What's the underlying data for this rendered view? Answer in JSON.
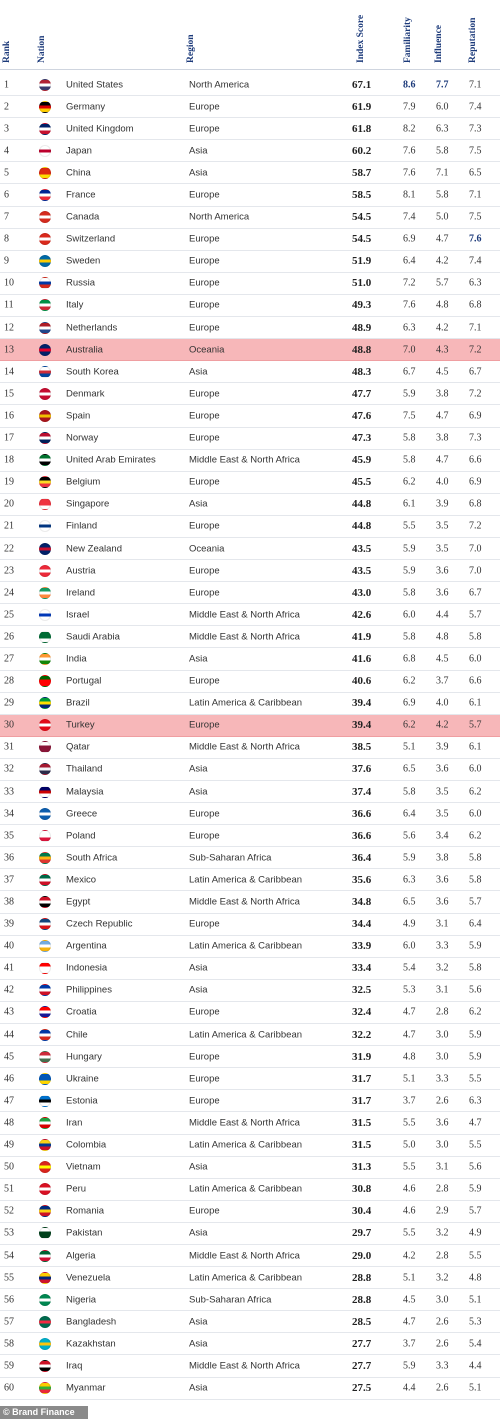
{
  "headers": {
    "rank": "Rank",
    "nation": "Nation",
    "region": "Region",
    "index": "Index Score",
    "familiarity": "Familiarity",
    "influence": "Influence",
    "reputation": "Reputation"
  },
  "rows": [
    {
      "rank": "1",
      "nation": "United States",
      "region": "North America",
      "index": "67.1",
      "fam": "8.6",
      "inf": "7.7",
      "rep": "7.1",
      "flag": [
        "#b22234",
        "#ffffff",
        "#3c3b6e"
      ]
    },
    {
      "rank": "2",
      "nation": "Germany",
      "region": "Europe",
      "index": "61.9",
      "fam": "7.9",
      "inf": "6.0",
      "rep": "7.4",
      "flag": [
        "#000000",
        "#dd0000",
        "#ffce00"
      ]
    },
    {
      "rank": "3",
      "nation": "United Kingdom",
      "region": "Europe",
      "index": "61.8",
      "fam": "8.2",
      "inf": "6.3",
      "rep": "7.3",
      "flag": [
        "#012169",
        "#ffffff",
        "#c8102e"
      ]
    },
    {
      "rank": "4",
      "nation": "Japan",
      "region": "Asia",
      "index": "60.2",
      "fam": "7.6",
      "inf": "5.8",
      "rep": "7.5",
      "flag": [
        "#ffffff",
        "#bc002d",
        "#ffffff"
      ]
    },
    {
      "rank": "5",
      "nation": "China",
      "region": "Asia",
      "index": "58.7",
      "fam": "7.6",
      "inf": "7.1",
      "rep": "6.5",
      "flag": [
        "#de2910",
        "#de2910",
        "#ffde00"
      ]
    },
    {
      "rank": "6",
      "nation": "France",
      "region": "Europe",
      "index": "58.5",
      "fam": "8.1",
      "inf": "5.8",
      "rep": "7.1",
      "flag": [
        "#002395",
        "#ffffff",
        "#ed2939"
      ]
    },
    {
      "rank": "7",
      "nation": "Canada",
      "region": "North America",
      "index": "54.5",
      "fam": "7.4",
      "inf": "5.0",
      "rep": "7.5",
      "flag": [
        "#d52b1e",
        "#ffffff",
        "#d52b1e"
      ]
    },
    {
      "rank": "8",
      "nation": "Switzerland",
      "region": "Europe",
      "index": "54.5",
      "fam": "6.9",
      "inf": "4.7",
      "rep": "7.6",
      "flag": [
        "#da291c",
        "#ffffff",
        "#da291c"
      ]
    },
    {
      "rank": "9",
      "nation": "Sweden",
      "region": "Europe",
      "index": "51.9",
      "fam": "6.4",
      "inf": "4.2",
      "rep": "7.4",
      "flag": [
        "#006aa7",
        "#fecc00",
        "#006aa7"
      ]
    },
    {
      "rank": "10",
      "nation": "Russia",
      "region": "Europe",
      "index": "51.0",
      "fam": "7.2",
      "inf": "5.7",
      "rep": "6.3",
      "flag": [
        "#ffffff",
        "#0039a6",
        "#d52b1e"
      ]
    },
    {
      "rank": "11",
      "nation": "Italy",
      "region": "Europe",
      "index": "49.3",
      "fam": "7.6",
      "inf": "4.8",
      "rep": "6.8",
      "flag": [
        "#009246",
        "#ffffff",
        "#ce2b37"
      ]
    },
    {
      "rank": "12",
      "nation": "Netherlands",
      "region": "Europe",
      "index": "48.9",
      "fam": "6.3",
      "inf": "4.2",
      "rep": "7.1",
      "flag": [
        "#ae1c28",
        "#ffffff",
        "#21468b"
      ]
    },
    {
      "rank": "13",
      "nation": "Australia",
      "region": "Oceania",
      "index": "48.8",
      "fam": "7.0",
      "inf": "4.3",
      "rep": "7.2",
      "flag": [
        "#012169",
        "#e4002b",
        "#012169"
      ],
      "highlight": true
    },
    {
      "rank": "14",
      "nation": "South Korea",
      "region": "Asia",
      "index": "48.3",
      "fam": "6.7",
      "inf": "4.5",
      "rep": "6.7",
      "flag": [
        "#ffffff",
        "#cd2e3a",
        "#0047a0"
      ]
    },
    {
      "rank": "15",
      "nation": "Denmark",
      "region": "Europe",
      "index": "47.7",
      "fam": "5.9",
      "inf": "3.8",
      "rep": "7.2",
      "flag": [
        "#c60c30",
        "#ffffff",
        "#c60c30"
      ]
    },
    {
      "rank": "16",
      "nation": "Spain",
      "region": "Europe",
      "index": "47.6",
      "fam": "7.5",
      "inf": "4.7",
      "rep": "6.9",
      "flag": [
        "#aa151b",
        "#f1bf00",
        "#aa151b"
      ]
    },
    {
      "rank": "17",
      "nation": "Norway",
      "region": "Europe",
      "index": "47.3",
      "fam": "5.8",
      "inf": "3.8",
      "rep": "7.3",
      "flag": [
        "#ba0c2f",
        "#ffffff",
        "#00205b"
      ]
    },
    {
      "rank": "18",
      "nation": "United Arab Emirates",
      "region": "Middle East & North Africa",
      "index": "45.9",
      "fam": "5.8",
      "inf": "4.7",
      "rep": "6.6",
      "flag": [
        "#00732f",
        "#ffffff",
        "#000000"
      ]
    },
    {
      "rank": "19",
      "nation": "Belgium",
      "region": "Europe",
      "index": "45.5",
      "fam": "6.2",
      "inf": "4.0",
      "rep": "6.9",
      "flag": [
        "#000000",
        "#fdda24",
        "#ef3340"
      ]
    },
    {
      "rank": "20",
      "nation": "Singapore",
      "region": "Asia",
      "index": "44.8",
      "fam": "6.1",
      "inf": "3.9",
      "rep": "6.8",
      "flag": [
        "#ef3340",
        "#ef3340",
        "#ffffff"
      ]
    },
    {
      "rank": "21",
      "nation": "Finland",
      "region": "Europe",
      "index": "44.8",
      "fam": "5.5",
      "inf": "3.5",
      "rep": "7.2",
      "flag": [
        "#ffffff",
        "#003580",
        "#ffffff"
      ]
    },
    {
      "rank": "22",
      "nation": "New Zealand",
      "region": "Oceania",
      "index": "43.5",
      "fam": "5.9",
      "inf": "3.5",
      "rep": "7.0",
      "flag": [
        "#012169",
        "#c8102e",
        "#012169"
      ]
    },
    {
      "rank": "23",
      "nation": "Austria",
      "region": "Europe",
      "index": "43.5",
      "fam": "5.9",
      "inf": "3.6",
      "rep": "7.0",
      "flag": [
        "#ed2939",
        "#ffffff",
        "#ed2939"
      ]
    },
    {
      "rank": "24",
      "nation": "Ireland",
      "region": "Europe",
      "index": "43.0",
      "fam": "5.8",
      "inf": "3.6",
      "rep": "6.7",
      "flag": [
        "#169b62",
        "#ffffff",
        "#ff883e"
      ]
    },
    {
      "rank": "25",
      "nation": "Israel",
      "region": "Middle East & North Africa",
      "index": "42.6",
      "fam": "6.0",
      "inf": "4.4",
      "rep": "5.7",
      "flag": [
        "#ffffff",
        "#0038b8",
        "#ffffff"
      ]
    },
    {
      "rank": "26",
      "nation": "Saudi Arabia",
      "region": "Middle East & North Africa",
      "index": "41.9",
      "fam": "5.8",
      "inf": "4.8",
      "rep": "5.8",
      "flag": [
        "#006c35",
        "#006c35",
        "#ffffff"
      ]
    },
    {
      "rank": "27",
      "nation": "India",
      "region": "Asia",
      "index": "41.6",
      "fam": "6.8",
      "inf": "4.5",
      "rep": "6.0",
      "flag": [
        "#ff9933",
        "#ffffff",
        "#138808"
      ]
    },
    {
      "rank": "28",
      "nation": "Portugal",
      "region": "Europe",
      "index": "40.6",
      "fam": "6.2",
      "inf": "3.7",
      "rep": "6.6",
      "flag": [
        "#006600",
        "#ff0000",
        "#ff0000"
      ]
    },
    {
      "rank": "29",
      "nation": "Brazil",
      "region": "Latin America & Caribbean",
      "index": "39.4",
      "fam": "6.9",
      "inf": "4.0",
      "rep": "6.1",
      "flag": [
        "#009c3b",
        "#ffdf00",
        "#002776"
      ]
    },
    {
      "rank": "30",
      "nation": "Turkey",
      "region": "Europe",
      "index": "39.4",
      "fam": "6.2",
      "inf": "4.2",
      "rep": "5.7",
      "flag": [
        "#e30a17",
        "#ffffff",
        "#e30a17"
      ],
      "highlight": true
    },
    {
      "rank": "31",
      "nation": "Qatar",
      "region": "Middle East & North Africa",
      "index": "38.5",
      "fam": "5.1",
      "inf": "3.9",
      "rep": "6.1",
      "flag": [
        "#ffffff",
        "#8a1538",
        "#8a1538"
      ]
    },
    {
      "rank": "32",
      "nation": "Thailand",
      "region": "Asia",
      "index": "37.6",
      "fam": "6.5",
      "inf": "3.6",
      "rep": "6.0",
      "flag": [
        "#a51931",
        "#f4f5f8",
        "#2d2a4a"
      ]
    },
    {
      "rank": "33",
      "nation": "Malaysia",
      "region": "Asia",
      "index": "37.4",
      "fam": "5.8",
      "inf": "3.5",
      "rep": "6.2",
      "flag": [
        "#010066",
        "#cc0001",
        "#ffffff"
      ]
    },
    {
      "rank": "34",
      "nation": "Greece",
      "region": "Europe",
      "index": "36.6",
      "fam": "6.4",
      "inf": "3.5",
      "rep": "6.0",
      "flag": [
        "#0d5eaf",
        "#ffffff",
        "#0d5eaf"
      ]
    },
    {
      "rank": "35",
      "nation": "Poland",
      "region": "Europe",
      "index": "36.6",
      "fam": "5.6",
      "inf": "3.4",
      "rep": "6.2",
      "flag": [
        "#ffffff",
        "#ffffff",
        "#dc143c"
      ]
    },
    {
      "rank": "36",
      "nation": "South Africa",
      "region": "Sub-Saharan Africa",
      "index": "36.4",
      "fam": "5.9",
      "inf": "3.8",
      "rep": "5.8",
      "flag": [
        "#007a4d",
        "#ffb612",
        "#de3831"
      ]
    },
    {
      "rank": "37",
      "nation": "Mexico",
      "region": "Latin America & Caribbean",
      "index": "35.6",
      "fam": "6.3",
      "inf": "3.6",
      "rep": "5.8",
      "flag": [
        "#006847",
        "#ffffff",
        "#ce1126"
      ]
    },
    {
      "rank": "38",
      "nation": "Egypt",
      "region": "Middle East & North Africa",
      "index": "34.8",
      "fam": "6.5",
      "inf": "3.6",
      "rep": "5.7",
      "flag": [
        "#ce1126",
        "#ffffff",
        "#000000"
      ]
    },
    {
      "rank": "39",
      "nation": "Czech Republic",
      "region": "Europe",
      "index": "34.4",
      "fam": "4.9",
      "inf": "3.1",
      "rep": "6.4",
      "flag": [
        "#11457e",
        "#ffffff",
        "#d7141a"
      ]
    },
    {
      "rank": "40",
      "nation": "Argentina",
      "region": "Latin America & Caribbean",
      "index": "33.9",
      "fam": "6.0",
      "inf": "3.3",
      "rep": "5.9",
      "flag": [
        "#74acdf",
        "#ffffff",
        "#f6b40e"
      ]
    },
    {
      "rank": "41",
      "nation": "Indonesia",
      "region": "Asia",
      "index": "33.4",
      "fam": "5.4",
      "inf": "3.2",
      "rep": "5.8",
      "flag": [
        "#ff0000",
        "#ffffff",
        "#ffffff"
      ]
    },
    {
      "rank": "42",
      "nation": "Philippines",
      "region": "Asia",
      "index": "32.5",
      "fam": "5.3",
      "inf": "3.1",
      "rep": "5.6",
      "flag": [
        "#0038a8",
        "#ffffff",
        "#ce1126"
      ]
    },
    {
      "rank": "43",
      "nation": "Croatia",
      "region": "Europe",
      "index": "32.4",
      "fam": "4.7",
      "inf": "2.8",
      "rep": "6.2",
      "flag": [
        "#ff0000",
        "#ffffff",
        "#171796"
      ]
    },
    {
      "rank": "44",
      "nation": "Chile",
      "region": "Latin America & Caribbean",
      "index": "32.2",
      "fam": "4.7",
      "inf": "3.0",
      "rep": "5.9",
      "flag": [
        "#0039a6",
        "#ffffff",
        "#d52b1e"
      ]
    },
    {
      "rank": "45",
      "nation": "Hungary",
      "region": "Europe",
      "index": "31.9",
      "fam": "4.8",
      "inf": "3.0",
      "rep": "5.9",
      "flag": [
        "#ce2939",
        "#ffffff",
        "#477050"
      ]
    },
    {
      "rank": "46",
      "nation": "Ukraine",
      "region": "Europe",
      "index": "31.7",
      "fam": "5.1",
      "inf": "3.3",
      "rep": "5.5",
      "flag": [
        "#0057b7",
        "#0057b7",
        "#ffd700"
      ]
    },
    {
      "rank": "47",
      "nation": "Estonia",
      "region": "Europe",
      "index": "31.7",
      "fam": "3.7",
      "inf": "2.6",
      "rep": "6.3",
      "flag": [
        "#0072ce",
        "#000000",
        "#ffffff"
      ]
    },
    {
      "rank": "48",
      "nation": "Iran",
      "region": "Middle East & North Africa",
      "index": "31.5",
      "fam": "5.5",
      "inf": "3.6",
      "rep": "4.7",
      "flag": [
        "#239f40",
        "#ffffff",
        "#da0000"
      ]
    },
    {
      "rank": "49",
      "nation": "Colombia",
      "region": "Latin America & Caribbean",
      "index": "31.5",
      "fam": "5.0",
      "inf": "3.0",
      "rep": "5.5",
      "flag": [
        "#fcd116",
        "#003893",
        "#ce1126"
      ]
    },
    {
      "rank": "50",
      "nation": "Vietnam",
      "region": "Asia",
      "index": "31.3",
      "fam": "5.5",
      "inf": "3.1",
      "rep": "5.6",
      "flag": [
        "#da251d",
        "#ffff00",
        "#da251d"
      ]
    },
    {
      "rank": "51",
      "nation": "Peru",
      "region": "Latin America & Caribbean",
      "index": "30.8",
      "fam": "4.6",
      "inf": "2.8",
      "rep": "5.9",
      "flag": [
        "#d91023",
        "#ffffff",
        "#d91023"
      ]
    },
    {
      "rank": "52",
      "nation": "Romania",
      "region": "Europe",
      "index": "30.4",
      "fam": "4.6",
      "inf": "2.9",
      "rep": "5.7",
      "flag": [
        "#002b7f",
        "#fcd116",
        "#ce1126"
      ]
    },
    {
      "rank": "53",
      "nation": "Pakistan",
      "region": "Asia",
      "index": "29.7",
      "fam": "5.5",
      "inf": "3.2",
      "rep": "4.9",
      "flag": [
        "#ffffff",
        "#01411c",
        "#01411c"
      ]
    },
    {
      "rank": "54",
      "nation": "Algeria",
      "region": "Middle East & North Africa",
      "index": "29.0",
      "fam": "4.2",
      "inf": "2.8",
      "rep": "5.5",
      "flag": [
        "#006233",
        "#ffffff",
        "#d21034"
      ]
    },
    {
      "rank": "55",
      "nation": "Venezuela",
      "region": "Latin America & Caribbean",
      "index": "28.8",
      "fam": "5.1",
      "inf": "3.2",
      "rep": "4.8",
      "flag": [
        "#ffcc00",
        "#00247d",
        "#cf142b"
      ]
    },
    {
      "rank": "56",
      "nation": "Nigeria",
      "region": "Sub-Saharan Africa",
      "index": "28.8",
      "fam": "4.5",
      "inf": "3.0",
      "rep": "5.1",
      "flag": [
        "#008751",
        "#ffffff",
        "#008751"
      ]
    },
    {
      "rank": "57",
      "nation": "Bangladesh",
      "region": "Asia",
      "index": "28.5",
      "fam": "4.7",
      "inf": "2.6",
      "rep": "5.3",
      "flag": [
        "#006a4e",
        "#f42a41",
        "#006a4e"
      ]
    },
    {
      "rank": "58",
      "nation": "Kazakhstan",
      "region": "Asia",
      "index": "27.7",
      "fam": "3.7",
      "inf": "2.6",
      "rep": "5.4",
      "flag": [
        "#00afca",
        "#fec50c",
        "#00afca"
      ]
    },
    {
      "rank": "59",
      "nation": "Iraq",
      "region": "Middle East & North Africa",
      "index": "27.7",
      "fam": "5.9",
      "inf": "3.3",
      "rep": "4.4",
      "flag": [
        "#ce1126",
        "#ffffff",
        "#000000"
      ]
    },
    {
      "rank": "60",
      "nation": "Myanmar",
      "region": "Asia",
      "index": "27.5",
      "fam": "4.4",
      "inf": "2.6",
      "rep": "5.1",
      "flag": [
        "#fecb00",
        "#34b233",
        "#ea2839"
      ]
    }
  ],
  "bold_values": {
    "1": [
      "fam",
      "inf"
    ],
    "8": [
      "rep"
    ]
  },
  "footer": {
    "credit": "© Brand Finance"
  }
}
